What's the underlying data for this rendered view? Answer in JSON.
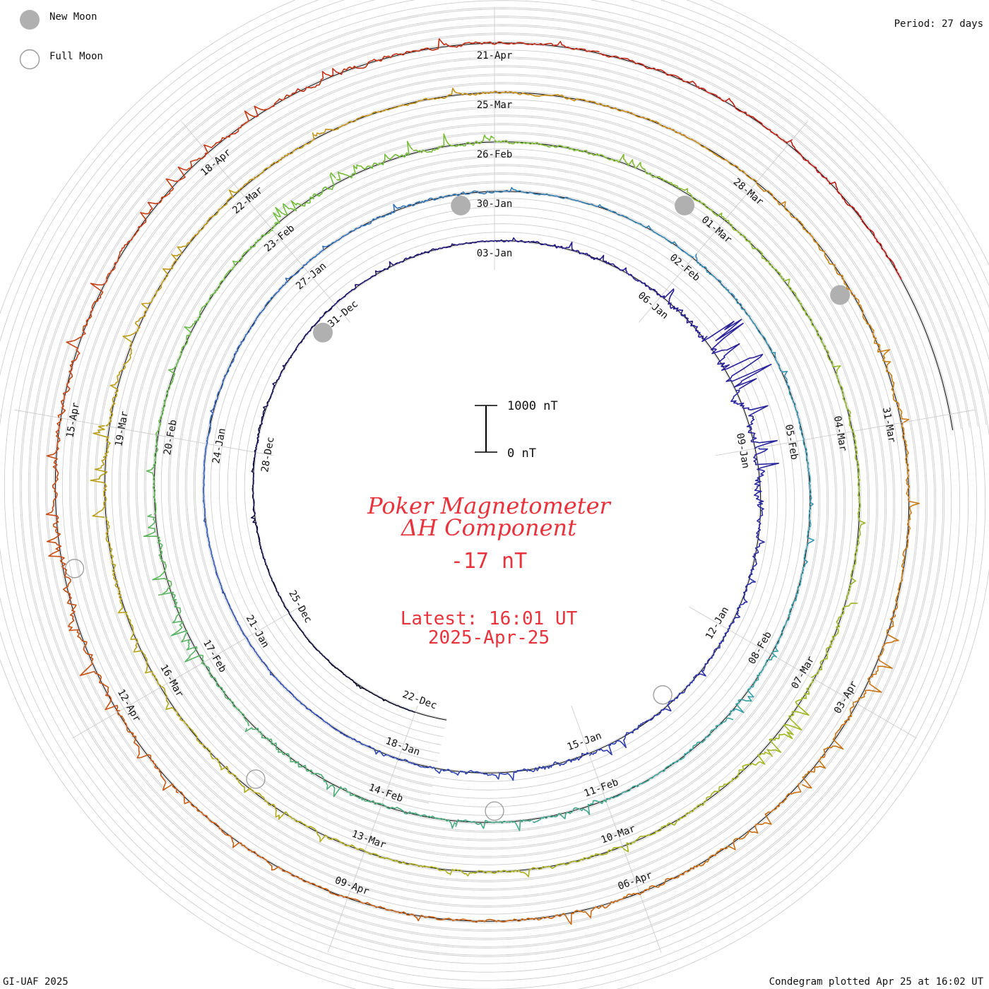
{
  "header": {
    "legend_new_moon": "New Moon",
    "legend_full_moon": "Full Moon",
    "period": "Period: 27 days"
  },
  "footer": {
    "left": "GI-UAF 2025",
    "right": "Condegram plotted Apr 25 at 16:02 UT"
  },
  "center": {
    "title": "Poker Magnetometer",
    "subtitle": "ΔH Component",
    "current_value": "-17 nT",
    "latest_time": "Latest: 16:01 UT",
    "latest_date": "2025-Apr-25",
    "scale_top": "1000 nT",
    "scale_bottom": "0 nT"
  },
  "colors": {
    "grid": "#c8c8c8",
    "baseline": "#000000",
    "title": "#e8333c",
    "moon_new": "#b0b0b0",
    "moon_full": "#9a9a9a"
  },
  "chart_data": {
    "type": "line",
    "period_days": 27,
    "start_date": "2024-12-22",
    "end_date": "2025-04-25",
    "scale_nT": [
      0,
      1000
    ],
    "date_labels": [
      "22-Dec",
      "25-Dec",
      "28-Dec",
      "31-Dec",
      "03-Jan",
      "06-Jan",
      "09-Jan",
      "12-Jan",
      "15-Jan",
      "18-Jan",
      "21-Jan",
      "24-Jan",
      "27-Jan",
      "30-Jan",
      "02-Feb",
      "05-Feb",
      "08-Feb",
      "11-Feb",
      "14-Feb",
      "17-Feb",
      "20-Feb",
      "23-Feb",
      "26-Feb",
      "01-Mar",
      "04-Mar",
      "07-Mar",
      "10-Mar",
      "13-Mar",
      "16-Mar",
      "19-Mar",
      "22-Mar",
      "25-Mar",
      "28-Mar",
      "31-Mar",
      "03-Apr",
      "06-Apr",
      "09-Apr",
      "12-Apr",
      "15-Apr",
      "18-Apr",
      "21-Apr"
    ],
    "new_moon_dates": [
      "2024-12-30",
      "2025-01-29",
      "2025-02-28",
      "2025-03-29"
    ],
    "full_moon_dates": [
      "2025-01-13",
      "2025-02-12",
      "2025-03-14",
      "2025-04-13"
    ],
    "daily_peak_nT": [
      40,
      60,
      40,
      50,
      80,
      60,
      120,
      90,
      80,
      70,
      130,
      60,
      110,
      180,
      150,
      300,
      850,
      620,
      500,
      240,
      180,
      160,
      140,
      220,
      280,
      170,
      120,
      90,
      60,
      50,
      40,
      40,
      45,
      80,
      110,
      90,
      70,
      140,
      150,
      90,
      60,
      60,
      150,
      80,
      110,
      100,
      120,
      140,
      210,
      170,
      120,
      240,
      200,
      160,
      220,
      310,
      180,
      320,
      280,
      160,
      150,
      190,
      170,
      340,
      280,
      250,
      200,
      180,
      160,
      200,
      160,
      170,
      130,
      140,
      290,
      330,
      280,
      220,
      180,
      160,
      140,
      150,
      170,
      190,
      160,
      240,
      310,
      250,
      170,
      150,
      140,
      130,
      150,
      180,
      120,
      110,
      170,
      210,
      240,
      200,
      180,
      330,
      290,
      220,
      200,
      260,
      170,
      140,
      130,
      150,
      250,
      340,
      480,
      360,
      300,
      250,
      200,
      210,
      260,
      190,
      150,
      140,
      160,
      140,
      130
    ]
  }
}
